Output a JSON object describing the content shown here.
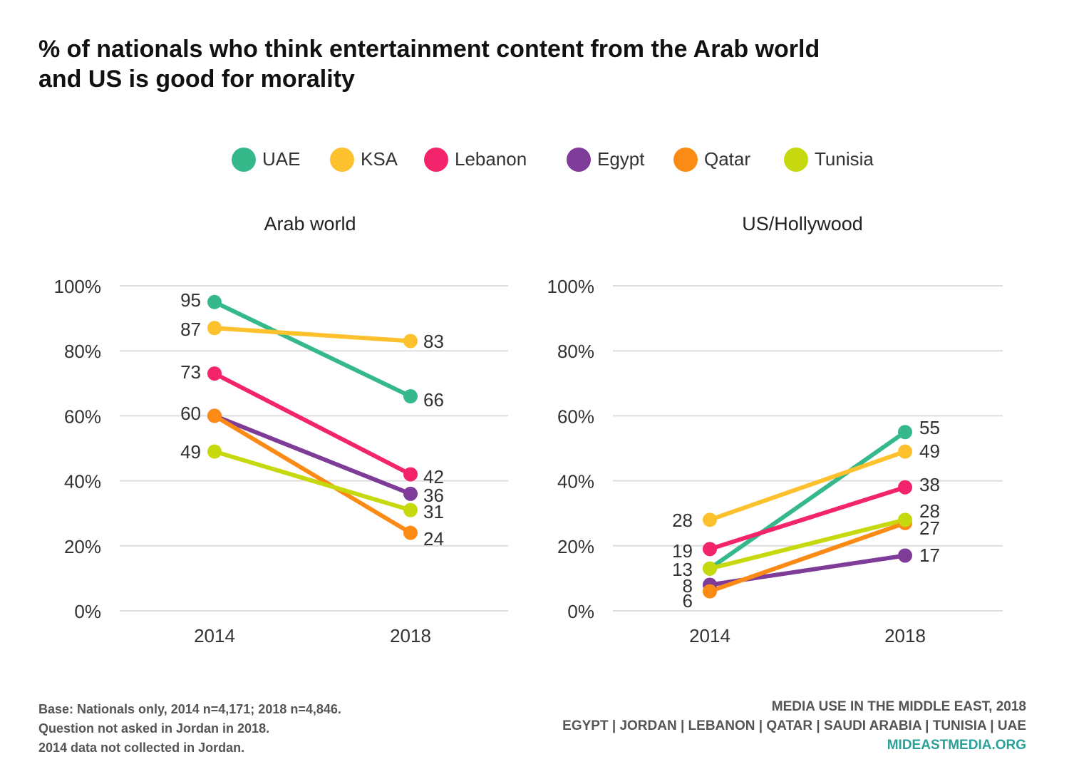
{
  "title": {
    "line1": "% of nationals who think entertainment content from the Arab world",
    "line2": "and US is good for morality"
  },
  "colors": {
    "UAE": "#35b98a",
    "KSA": "#fcc12c",
    "Lebanon": "#f3246c",
    "Egypt": "#7e3c98",
    "Qatar": "#fb8b15",
    "Tunisia": "#c6d90f",
    "grid": "#dddddd",
    "url": "#2aa198"
  },
  "chart_data": [
    {
      "type": "line",
      "title": "Arab world",
      "x": [
        "2014",
        "2018"
      ],
      "ylim": [
        0,
        100
      ],
      "yticks": [
        "0%",
        "20%",
        "40%",
        "60%",
        "80%",
        "100%"
      ],
      "grid": true,
      "legend": "top-center",
      "series": [
        {
          "name": "UAE",
          "values": [
            95,
            66
          ]
        },
        {
          "name": "KSA",
          "values": [
            87,
            83
          ]
        },
        {
          "name": "Lebanon",
          "values": [
            73,
            42
          ]
        },
        {
          "name": "Egypt",
          "values": [
            60,
            36
          ]
        },
        {
          "name": "Qatar",
          "values": [
            60,
            24
          ]
        },
        {
          "name": "Tunisia",
          "values": [
            49,
            31
          ]
        }
      ],
      "labels_2014": [
        "95",
        "87",
        "73",
        "60",
        "49"
      ],
      "labels_2018": [
        "83",
        "66",
        "42",
        "36",
        "31",
        "24"
      ]
    },
    {
      "type": "line",
      "title": "US/Hollywood",
      "x": [
        "2014",
        "2018"
      ],
      "ylim": [
        0,
        100
      ],
      "yticks": [
        "0%",
        "20%",
        "40%",
        "60%",
        "80%",
        "100%"
      ],
      "grid": true,
      "legend": "top-center",
      "series": [
        {
          "name": "UAE",
          "values": [
            13,
            55
          ]
        },
        {
          "name": "KSA",
          "values": [
            28,
            49
          ]
        },
        {
          "name": "Lebanon",
          "values": [
            19,
            38
          ]
        },
        {
          "name": "Egypt",
          "values": [
            8,
            17
          ]
        },
        {
          "name": "Qatar",
          "values": [
            6,
            27
          ]
        },
        {
          "name": "Tunisia",
          "values": [
            13,
            28
          ]
        }
      ],
      "labels_2014": [
        "28",
        "19",
        "13",
        "8",
        "6"
      ],
      "labels_2018": [
        "55",
        "49",
        "38",
        "28",
        "27",
        "17"
      ]
    }
  ],
  "footer": {
    "notes": [
      "Base: Nationals only, 2014 n=4,171; 2018 n=4,846.",
      "Question not asked in Jordan in 2018.",
      "2014 data not collected in Jordan."
    ],
    "source_title": "MEDIA USE IN THE MIDDLE EAST, 2018",
    "countries": "EGYPT | JORDAN | LEBANON | QATAR | SAUDI ARABIA | TUNISIA | UAE",
    "url": "MIDEASTMEDIA.ORG"
  }
}
